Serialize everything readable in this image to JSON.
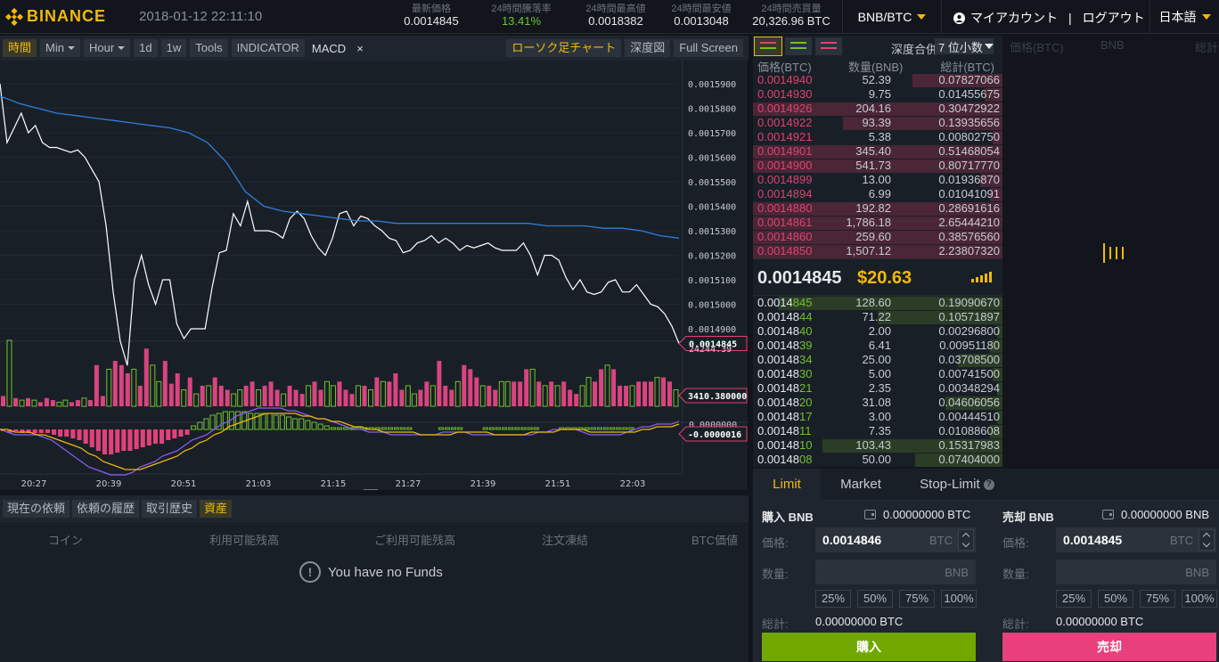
{
  "header": {
    "logo_text": "BINANCE",
    "datetime": "2018-01-12 22:11:10",
    "stats": [
      {
        "label": "最新価格",
        "value": "0.0014845"
      },
      {
        "label": "24時間騰落率",
        "value": "13.41%"
      },
      {
        "label": "24時間最高値",
        "value": "0.0018382"
      },
      {
        "label": "24時間最安値",
        "value": "0.0013048"
      },
      {
        "label": "24時間売買量",
        "value": "20,326.96 BTC"
      }
    ],
    "pair": "BNB/BTC",
    "account": "マイアカウント",
    "logout": "ログアウト",
    "language": "日本語"
  },
  "chart_toolbar": {
    "time": "時間",
    "min": "Min",
    "hour": "Hour",
    "d1": "1d",
    "w1": "1w",
    "tools": "Tools",
    "indicator": "INDICATOR",
    "macd": "MACD",
    "close": "×",
    "candle": "ローソク足チャート",
    "depth": "深度図",
    "fullscreen": "Full Screen"
  },
  "chart_data": {
    "type": "line",
    "series": [
      {
        "name": "price",
        "color": "#ffffff",
        "values": [
          0.00159,
          0.001566,
          0.001572,
          0.001578,
          0.00157,
          0.001573,
          0.001566,
          0.001564,
          0.001564,
          0.001563,
          0.001562,
          0.001563,
          0.00156,
          0.001555,
          0.00155,
          0.001532,
          0.001505,
          0.001485,
          0.001475,
          0.00151,
          0.00152,
          0.001508,
          0.0015,
          0.00151,
          0.00151,
          0.001492,
          0.001486,
          0.00149,
          0.00149,
          0.00149,
          0.001507,
          0.001521,
          0.001522,
          0.001537,
          0.001532,
          0.001542,
          0.00153,
          0.00153,
          0.00153,
          0.001529,
          0.001527,
          0.001535,
          0.001538,
          0.001535,
          0.001528,
          0.001523,
          0.00152,
          0.001527,
          0.001537,
          0.001538,
          0.001532,
          0.001536,
          0.001535,
          0.001532,
          0.00153,
          0.001527,
          0.001526,
          0.001521,
          0.001522,
          0.001525,
          0.001526,
          0.001528,
          0.001525,
          0.001527,
          0.001525,
          0.001522,
          0.001524,
          0.001523,
          0.001524,
          0.001525,
          0.001523,
          0.001522,
          0.001522,
          0.001522,
          0.001525,
          0.00152,
          0.001512,
          0.00152,
          0.00152,
          0.001518,
          0.001511,
          0.001506,
          0.00151,
          0.001505,
          0.001504,
          0.001505,
          0.001509,
          0.00151,
          0.001505,
          0.001505,
          0.001508,
          0.001504,
          0.0015,
          0.001499,
          0.001496,
          0.001491,
          0.001484
        ]
      },
      {
        "name": "ma",
        "color": "#2f7ed8",
        "values": [
          0.001585,
          0.001582,
          0.00158,
          0.001578,
          0.001577,
          0.001576,
          0.001575,
          0.001574,
          0.001573,
          0.001572,
          0.00157,
          0.001566,
          0.001558,
          0.001546,
          0.00154,
          0.001538,
          0.001537,
          0.001536,
          0.001535,
          0.001534,
          0.001534,
          0.001533,
          0.001533,
          0.001533,
          0.001533,
          0.001533,
          0.001533,
          0.001533,
          0.001533,
          0.001532,
          0.001532,
          0.001532,
          0.001531,
          0.001531,
          0.00153,
          0.001528,
          0.001527
        ]
      }
    ],
    "y_ticks": [
      "0.0015900",
      "0.0015800",
      "0.0015700",
      "0.0015600",
      "0.0015500",
      "0.0015400",
      "0.0015300",
      "0.0015200",
      "0.0015100",
      "0.0015000",
      "0.0014900"
    ],
    "ylim": [
      0.001486,
      0.001598
    ],
    "x_ticks": [
      "20:27",
      "20:39",
      "20:51",
      "21:03",
      "21:15",
      "21:27",
      "21:39",
      "21:51",
      "22:03"
    ],
    "price_label": "0.0014845",
    "volume_top_label": "24244.39",
    "volume_label": "3410.380000",
    "macd_label": "-0.0000016",
    "macd_top_label": "0.0000000",
    "volumes": [
      5,
      32,
      4,
      3,
      4,
      3,
      2,
      4,
      3,
      2,
      3,
      2,
      3,
      4,
      3,
      20,
      5,
      18,
      22,
      20,
      16,
      18,
      10,
      28,
      20,
      12,
      22,
      11,
      16,
      8,
      14,
      6,
      10,
      10,
      14,
      10,
      8,
      6,
      8,
      10,
      12,
      8,
      10,
      12,
      8,
      6,
      10,
      8,
      6,
      10,
      12,
      8,
      12,
      10,
      12,
      8,
      6,
      10,
      10,
      8,
      14,
      12,
      12,
      16,
      8,
      10,
      6,
      8,
      12,
      10,
      22,
      10,
      8,
      12,
      20,
      18,
      14,
      10,
      10,
      8,
      12,
      12,
      12,
      12,
      18,
      18,
      12,
      10,
      12,
      10,
      12,
      8,
      6,
      10,
      14,
      12,
      18,
      20,
      18,
      10,
      10,
      10,
      12,
      12,
      12,
      14,
      14,
      12,
      8
    ],
    "macd_hist": [
      1,
      2,
      1,
      2,
      2,
      2,
      2,
      2,
      3,
      4,
      4,
      5,
      6,
      8,
      10,
      12,
      14,
      14,
      13,
      12,
      12,
      11,
      10,
      9,
      8,
      8,
      6,
      5,
      4,
      3,
      -2,
      -4,
      -6,
      -8,
      -9,
      -10,
      -10,
      -10,
      -10,
      -9,
      -9,
      -9,
      -9,
      -8,
      -8,
      -7,
      -6,
      -6,
      -5,
      -4,
      -3,
      -2,
      -1,
      -1,
      1,
      1,
      1,
      1,
      1,
      1,
      1,
      1,
      1,
      1,
      1,
      0,
      0,
      0,
      0,
      1,
      1,
      1,
      1,
      0,
      0,
      0,
      1,
      1,
      1,
      1,
      1,
      1,
      1,
      1,
      1,
      0,
      0,
      0,
      1,
      1,
      1,
      1,
      1,
      1,
      1,
      1,
      1,
      1,
      1,
      1,
      0,
      0,
      0,
      0,
      0,
      0,
      0
    ],
    "macd_line": [
      0,
      1,
      2,
      2,
      2,
      2,
      3,
      4,
      6,
      8,
      10,
      12,
      14,
      15,
      16,
      17,
      17,
      17,
      16,
      14,
      13,
      12,
      10,
      9,
      8,
      6,
      4,
      3,
      2,
      0,
      -2,
      -3,
      -5,
      -6,
      -7,
      -8,
      -8,
      -8,
      -8,
      -7,
      -7,
      -6,
      -5,
      -4,
      -4,
      -3,
      -2,
      -1,
      0,
      0,
      1,
      1,
      1,
      2,
      2,
      2,
      2,
      2,
      2,
      2,
      1,
      1,
      1,
      1,
      2,
      2,
      2,
      2,
      2,
      2,
      2,
      2,
      2,
      1,
      1,
      0,
      0,
      0,
      0,
      1,
      2,
      2,
      2,
      2,
      2,
      1,
      0,
      -1,
      -1,
      -2,
      -2,
      -2,
      -3
    ],
    "signal_line": [
      0,
      0,
      1,
      1,
      1,
      2,
      2,
      3,
      4,
      5,
      6,
      7,
      9,
      10,
      12,
      13,
      14,
      15,
      15,
      15,
      14,
      13,
      12,
      11,
      10,
      8,
      7,
      5,
      4,
      2,
      1,
      -1,
      -2,
      -3,
      -4,
      -5,
      -6,
      -6,
      -6,
      -6,
      -6,
      -5,
      -5,
      -4,
      -4,
      -3,
      -3,
      -2,
      -1,
      -1,
      0,
      0,
      1,
      1,
      1,
      1,
      1,
      2,
      2,
      2,
      2,
      2,
      1,
      1,
      1,
      1,
      1,
      2,
      2,
      2,
      2,
      2,
      1,
      1,
      1,
      1,
      0,
      0,
      0,
      0,
      1,
      1,
      1,
      1,
      1,
      1,
      1,
      0,
      0,
      -1,
      -1,
      -1,
      -2
    ]
  },
  "funds": {
    "tabs": [
      "現在の依頼",
      "依頼の履歴",
      "取引歴史",
      "資産"
    ],
    "columns": [
      "コイン",
      "利用可能残高",
      "ご利用可能残高",
      "注文凍結",
      "BTC価値"
    ],
    "empty": "You have no Funds"
  },
  "orderbook": {
    "depth_label": "深度合併",
    "depth_value": "7 位小数",
    "headers": [
      "価格(BTC)",
      "数量(BNB)",
      "総計(BTC)"
    ],
    "asks": [
      {
        "p": "0.0014940",
        "q": "52.39",
        "t": "0.07827066",
        "w": 0.36
      },
      {
        "p": "0.0014930",
        "q": "9.75",
        "t": "0.01455675",
        "w": 0.07
      },
      {
        "p": "0.0014926",
        "q": "204.16",
        "t": "0.30472922",
        "w": 1.0
      },
      {
        "p": "0.0014922",
        "q": "93.39",
        "t": "0.13935656",
        "w": 0.64
      },
      {
        "p": "0.0014921",
        "q": "5.38",
        "t": "0.00802750",
        "w": 0.04
      },
      {
        "p": "0.0014901",
        "q": "345.40",
        "t": "0.51468054",
        "w": 1.0
      },
      {
        "p": "0.0014900",
        "q": "541.73",
        "t": "0.80717770",
        "w": 1.0
      },
      {
        "p": "0.0014899",
        "q": "13.00",
        "t": "0.01936870",
        "w": 0.09
      },
      {
        "p": "0.0014894",
        "q": "6.99",
        "t": "0.01041091",
        "w": 0.05
      },
      {
        "p": "0.0014880",
        "q": "192.82",
        "t": "0.28691616",
        "w": 1.0
      },
      {
        "p": "0.0014861",
        "q": "1,786.18",
        "t": "2.65444210",
        "w": 1.0
      },
      {
        "p": "0.0014860",
        "q": "259.60",
        "t": "0.38576560",
        "w": 1.0
      },
      {
        "p": "0.0014850",
        "q": "1,507.12",
        "t": "2.23807320",
        "w": 1.0
      }
    ],
    "last_price": "0.0014845",
    "last_usd": "$20.63",
    "bids": [
      {
        "a": "0.0014",
        "b": "845",
        "q": "128.60",
        "t": "0.19090670",
        "w": 0.9
      },
      {
        "a": "0.00148",
        "b": "44",
        "q": "71.22",
        "t": "0.10571897",
        "w": 0.5
      },
      {
        "a": "0.00148",
        "b": "40",
        "q": "2.00",
        "t": "0.00296800",
        "w": 0.02
      },
      {
        "a": "0.00148",
        "b": "39",
        "q": "6.41",
        "t": "0.00951180",
        "w": 0.05
      },
      {
        "a": "0.00148",
        "b": "34",
        "q": "25.00",
        "t": "0.03708500",
        "w": 0.18
      },
      {
        "a": "0.00148",
        "b": "30",
        "q": "5.00",
        "t": "0.00741500",
        "w": 0.04
      },
      {
        "a": "0.00148",
        "b": "21",
        "q": "2.35",
        "t": "0.00348294",
        "w": 0.02
      },
      {
        "a": "0.00148",
        "b": "20",
        "q": "31.08",
        "t": "0.04606056",
        "w": 0.23
      },
      {
        "a": "0.00148",
        "b": "17",
        "q": "3.00",
        "t": "0.00444510",
        "w": 0.02
      },
      {
        "a": "0.00148",
        "b": "11",
        "q": "7.35",
        "t": "0.01088608",
        "w": 0.05
      },
      {
        "a": "0.00148",
        "b": "10",
        "q": "103.43",
        "t": "0.15317983",
        "w": 0.72
      },
      {
        "a": "0.00148",
        "b": "08",
        "q": "50.00",
        "t": "0.07404000",
        "w": 0.35
      }
    ]
  },
  "depth_panel": {
    "h1": "価格(BTC)",
    "h2": "BNB",
    "h3": "総計"
  },
  "trade": {
    "tabs": [
      "Limit",
      "Market",
      "Stop-Limit"
    ],
    "qmark": "?",
    "buy": {
      "title": "購入 BNB",
      "balance": "0.00000000 BTC",
      "price_label": "価格:",
      "price": "0.0014846",
      "price_unit": "BTC",
      "qty_label": "数量:",
      "qty_unit": "BNB",
      "pcts": [
        "25%",
        "50%",
        "75%",
        "100%"
      ],
      "total_label": "総計:",
      "total": "0.00000000 BTC",
      "action": "購入"
    },
    "sell": {
      "title": "売却 BNB",
      "balance": "0.00000000 BNB",
      "price_label": "価格:",
      "price": "0.0014845",
      "price_unit": "BTC",
      "qty_label": "数量:",
      "qty_unit": "BNB",
      "pcts": [
        "25%",
        "50%",
        "75%",
        "100%"
      ],
      "total_label": "総計:",
      "total": "0.00000000 BTC",
      "action": "売却"
    }
  }
}
